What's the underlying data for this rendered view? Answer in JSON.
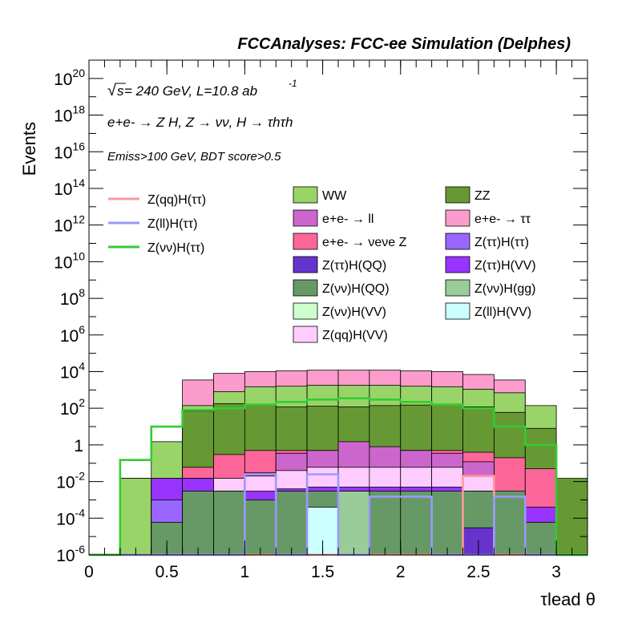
{
  "header": {
    "title": "FCCAnalyses: FCC-ee Simulation (Delphes)"
  },
  "annotations": {
    "line1_prefix": "√",
    "line1_s": "s",
    "line1_text": " = 240 GeV, L=10.8 ab",
    "line1_sup": "-1",
    "line2": "e+e- → Z H, Z → νν, H → τhτh",
    "line3": "Emiss>100 GeV, BDT score>0.5"
  },
  "chart_data": {
    "type": "bar",
    "stacked": true,
    "log_y": true,
    "xlabel": "τlead θ",
    "ylabel": "Events",
    "xlim": [
      0,
      3.2
    ],
    "ylim": [
      1e-06,
      1e+21
    ],
    "bin_edges": [
      0,
      0.2,
      0.4,
      0.6,
      0.8,
      1.0,
      1.2,
      1.4,
      1.6,
      1.8,
      2.0,
      2.2,
      2.4,
      2.6,
      2.8,
      3.0,
      3.2
    ],
    "x_ticks": [
      "0",
      "0.5",
      "1",
      "1.5",
      "2",
      "2.5",
      "3"
    ],
    "x_tick_values": [
      0,
      0.5,
      1,
      1.5,
      2,
      2.5,
      3
    ],
    "y_ticks": [
      {
        "value": 1e-06,
        "base": "10",
        "exp": "-6"
      },
      {
        "value": 0.0001,
        "base": "10",
        "exp": "-4"
      },
      {
        "value": 0.01,
        "base": "10",
        "exp": "-2"
      },
      {
        "value": 1,
        "base": "1",
        "exp": ""
      },
      {
        "value": 100.0,
        "base": "10",
        "exp": "2"
      },
      {
        "value": 10000.0,
        "base": "10",
        "exp": "4"
      },
      {
        "value": 1000000.0,
        "base": "10",
        "exp": "6"
      },
      {
        "value": 100000000.0,
        "base": "10",
        "exp": "8"
      },
      {
        "value": 10000000000.0,
        "base": "10",
        "exp": "10"
      },
      {
        "value": 1000000000000.0,
        "base": "10",
        "exp": "12"
      },
      {
        "value": 100000000000000.0,
        "base": "10",
        "exp": "14"
      },
      {
        "value": 1e+16,
        "base": "10",
        "exp": "16"
      },
      {
        "value": 1e+18,
        "base": "10",
        "exp": "18"
      },
      {
        "value": 1e+20,
        "base": "10",
        "exp": "20"
      }
    ],
    "stack_levels": [
      {
        "name": "e+e- → ττ",
        "color": "#fc9ccc",
        "values": [
          0,
          0.015,
          0,
          3500,
          8000,
          10000,
          11000,
          12000,
          12000,
          12000,
          11000,
          10000,
          7000,
          3500,
          0,
          0
        ]
      },
      {
        "name": "WW",
        "color": "#98d468",
        "values": [
          0,
          0.015,
          1.5,
          140,
          800,
          1500,
          1600,
          1800,
          1800,
          1800,
          1600,
          1500,
          1100,
          700,
          140,
          0
        ]
      },
      {
        "name": "ZZ",
        "color": "#669933",
        "values": [
          0,
          0,
          0.015,
          70,
          180,
          150,
          120,
          130,
          120,
          140,
          150,
          170,
          120,
          60,
          8,
          0.015
        ]
      },
      {
        "name": "e+e- → νeνe Z",
        "color": "#fc6699",
        "values": [
          0,
          0,
          0,
          0.06,
          0.3,
          0.5,
          0.5,
          0.5,
          0.5,
          0.5,
          0.5,
          0.5,
          0.4,
          0.2,
          0.05,
          0
        ]
      },
      {
        "name": "e+e- → ll",
        "color": "#cc66cc",
        "values": [
          0,
          0,
          0,
          0.015,
          0.01,
          0.03,
          0.35,
          0.5,
          1.5,
          0.8,
          0.5,
          0.35,
          0.12,
          0,
          0,
          0
        ]
      },
      {
        "name": "Z(qq)H(VV)",
        "color": "#ffccff",
        "values": [
          0,
          0,
          0,
          0,
          0.015,
          0.02,
          0.04,
          0.06,
          0.06,
          0.06,
          0.06,
          0.06,
          0.02,
          0,
          0,
          0
        ]
      },
      {
        "name": "Z(ττ)H(VV)",
        "color": "#9933ff",
        "values": [
          0,
          0,
          0.015,
          0.015,
          0.003,
          0.003,
          0.004,
          0.005,
          0.005,
          0.005,
          0.005,
          0.005,
          0.003,
          0.001,
          0.0004,
          0
        ]
      },
      {
        "name": "Z(ττ)H(ττ)",
        "color": "#9966ff",
        "values": [
          0,
          0,
          0.001,
          0,
          0,
          0,
          0,
          0,
          0,
          0,
          0,
          0,
          0,
          0,
          0,
          0
        ]
      },
      {
        "name": "Z(νν)H(QQ)",
        "color": "#669966",
        "values": [
          0,
          0,
          6e-05,
          0.003,
          0.003,
          0.001,
          0.003,
          0.003,
          0.003,
          0.003,
          0.003,
          0.003,
          0.003,
          0.003,
          6e-05,
          0
        ]
      },
      {
        "name": "Z(ll)H(VV)",
        "color": "#ccffff",
        "values": [
          0,
          0,
          0,
          0,
          0,
          0,
          0,
          0.0004,
          0,
          0,
          0,
          0,
          0,
          0,
          0,
          0
        ]
      },
      {
        "name": "Z(νν)H(gg)",
        "color": "#99cc99",
        "values": [
          0,
          0,
          0,
          0,
          0,
          0,
          0,
          0,
          0.003,
          0,
          0,
          0,
          0,
          0,
          0,
          0
        ]
      },
      {
        "name": "Z(ττ)H(QQ)",
        "color": "#6633cc",
        "values": [
          0,
          0,
          0,
          0,
          0,
          0,
          0,
          0,
          0,
          0,
          0,
          0,
          3e-05,
          0,
          0,
          0
        ]
      }
    ],
    "overlay_lines": [
      {
        "name": "Z(qq)H(ττ)",
        "color": "#ff9999",
        "values": [
          0,
          0,
          0,
          0,
          0,
          0,
          0,
          0,
          0,
          0,
          0,
          0,
          0.02,
          0,
          0,
          0
        ]
      },
      {
        "name": "Z(ll)H(ττ)",
        "color": "#9999ff",
        "values": [
          0,
          0,
          0,
          0,
          0,
          0.025,
          0,
          0.025,
          0,
          0.0015,
          0.0015,
          0,
          0,
          0.0015,
          0,
          0
        ]
      },
      {
        "name": "Z(νν)H(ττ)",
        "color": "#33cc33",
        "values": [
          0,
          0.15,
          10,
          80,
          100,
          160,
          220,
          300,
          350,
          300,
          220,
          160,
          100,
          10,
          1.0,
          0
        ]
      }
    ],
    "legend_lines": [
      {
        "name": "Z(qq)H(ττ)",
        "color": "#ff9999"
      },
      {
        "name": "Z(ll)H(ττ)",
        "color": "#9999ff"
      },
      {
        "name": "Z(νν)H(ττ)",
        "color": "#33cc33"
      }
    ],
    "legend_fills": [
      {
        "name": "WW",
        "color": "#98d468"
      },
      {
        "name": "ZZ",
        "color": "#669933"
      },
      {
        "name": "e+e- → ll",
        "color": "#cc66cc"
      },
      {
        "name": "e+e- → ττ",
        "color": "#fc9ccc"
      },
      {
        "name": "e+e- → νeνe Z",
        "color": "#fc6699"
      },
      {
        "name": "Z(ττ)H(ττ)",
        "color": "#9966ff"
      },
      {
        "name": "Z(ττ)H(QQ)",
        "color": "#6633cc"
      },
      {
        "name": "Z(ττ)H(VV)",
        "color": "#9933ff"
      },
      {
        "name": "Z(νν)H(QQ)",
        "color": "#669966"
      },
      {
        "name": "Z(νν)H(gg)",
        "color": "#99cc99"
      },
      {
        "name": "Z(νν)H(VV)",
        "color": "#ccffcc"
      },
      {
        "name": "Z(ll)H(VV)",
        "color": "#ccffff"
      },
      {
        "name": "Z(qq)H(VV)",
        "color": "#ffccff"
      }
    ]
  }
}
